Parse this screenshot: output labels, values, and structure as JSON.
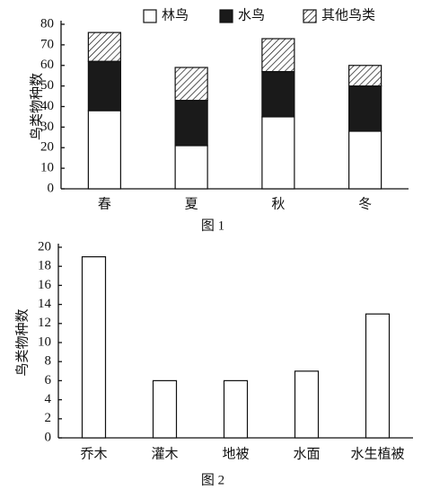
{
  "chart_data": [
    {
      "type": "stacked_bar",
      "caption": "图 1",
      "y_label": "鸟类物种数",
      "categories": [
        "春",
        "夏",
        "秋",
        "冬"
      ],
      "series": [
        {
          "name": "林鸟",
          "color": "#ffffff",
          "values": [
            38,
            21,
            35,
            28
          ]
        },
        {
          "name": "水鸟",
          "color": "#1a1a1a",
          "values": [
            24,
            22,
            22,
            22
          ]
        },
        {
          "name": "其他鸟类",
          "color": "#ffffff",
          "pattern": "hatch",
          "values": [
            14,
            16,
            16,
            10
          ]
        }
      ],
      "ylim": [
        0,
        80
      ],
      "yticks": [
        0,
        10,
        20,
        30,
        40,
        50,
        60,
        70,
        80
      ],
      "legend": "top"
    },
    {
      "type": "bar",
      "caption": "图 2",
      "y_label": "鸟类物种数",
      "categories": [
        "乔木",
        "灌木",
        "地被",
        "水面",
        "水生植被"
      ],
      "values": [
        19,
        6,
        6,
        7,
        13
      ],
      "color": "#ffffff",
      "ylim": [
        0,
        20
      ],
      "yticks": [
        0,
        2,
        4,
        6,
        8,
        10,
        12,
        14,
        16,
        18,
        20
      ]
    }
  ]
}
